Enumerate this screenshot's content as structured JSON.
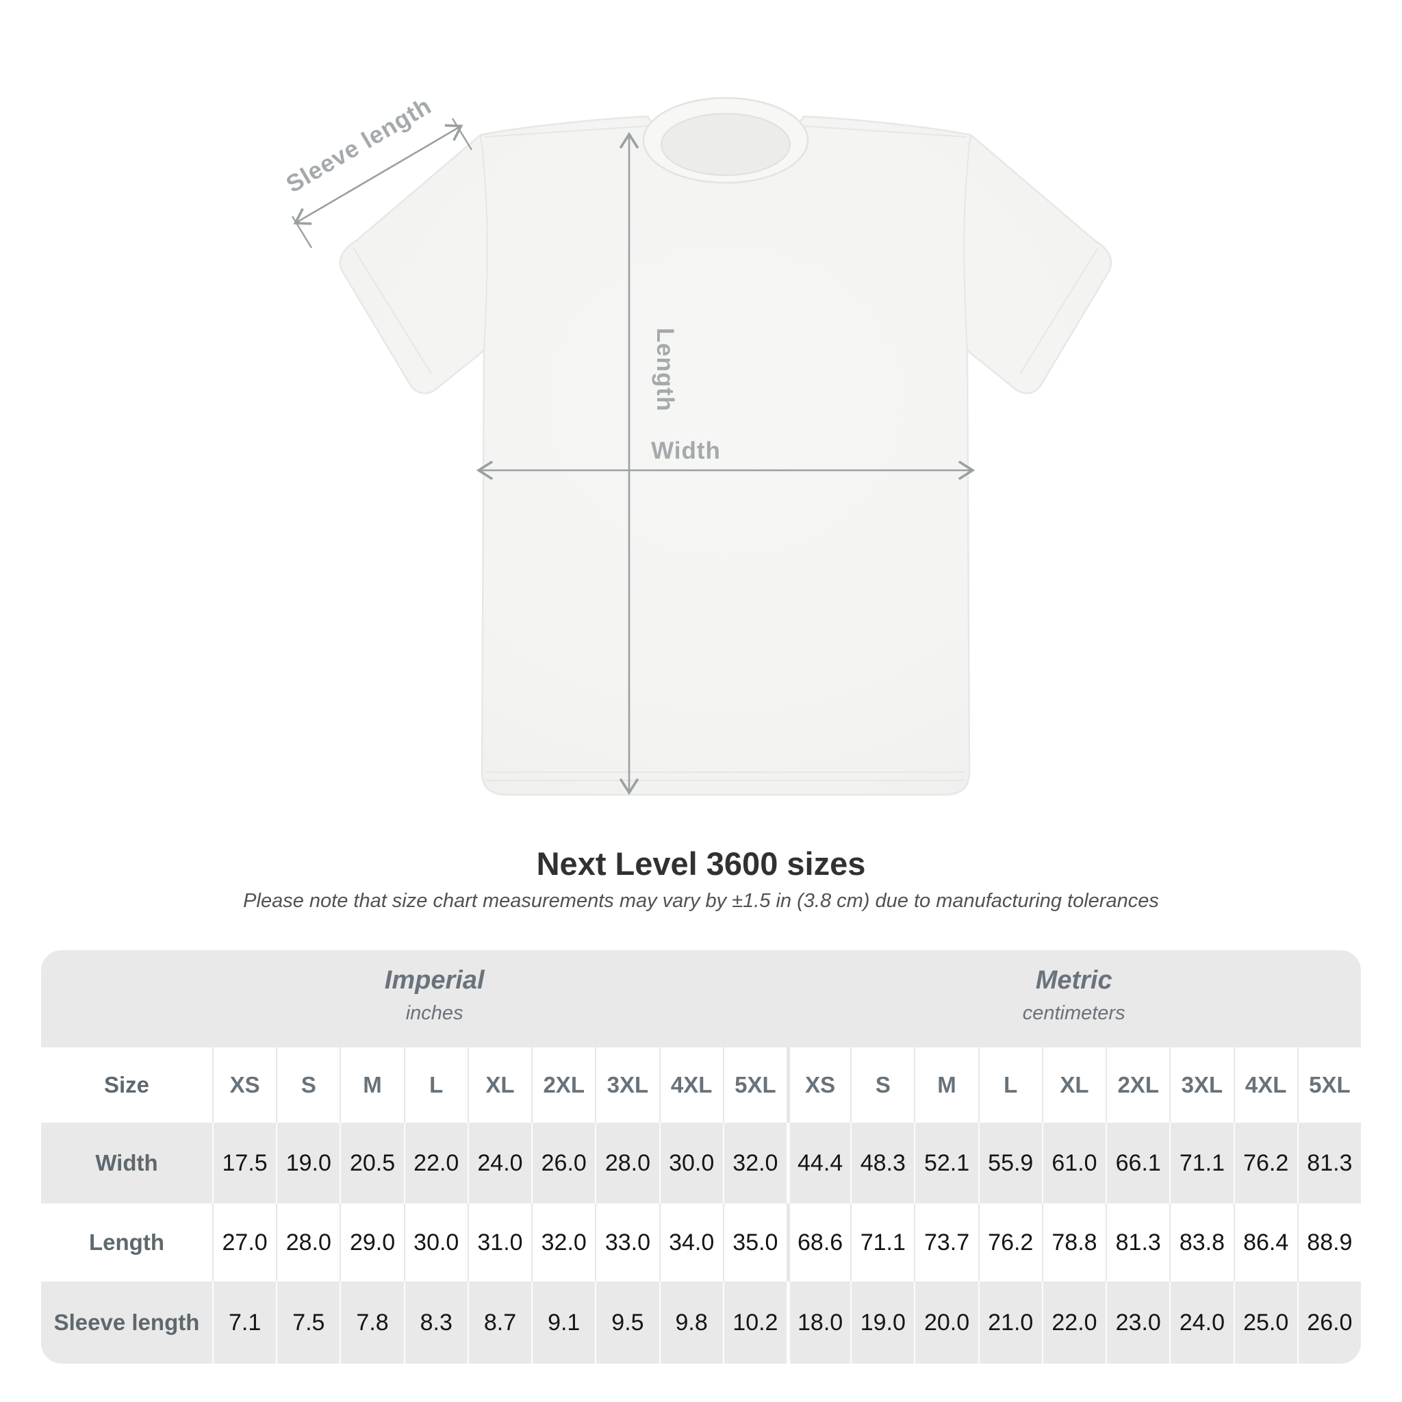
{
  "diagram": {
    "sleeve_label": "Sleeve length",
    "length_label": "Length",
    "width_label": "Width",
    "annotation_line_color": "#9aa0a2",
    "annotation_text_color": "#a4a9ac",
    "shirt_color": "#f4f4f2"
  },
  "title": "Next Level 3600 sizes",
  "subtitle": "Please note that size chart measurements may vary by ±1.5 in (3.8 cm) due to manufacturing tolerances",
  "table": {
    "background_gray": "#e9e9e9",
    "groups": [
      {
        "label": "Imperial",
        "sublabel": "inches"
      },
      {
        "label": "Metric",
        "sublabel": "centimeters"
      }
    ],
    "size_label": "Size",
    "sizes": [
      "XS",
      "S",
      "M",
      "L",
      "XL",
      "2XL",
      "3XL",
      "4XL",
      "5XL"
    ],
    "rows": [
      {
        "label": "Width",
        "imperial": [
          "17.5",
          "19.0",
          "20.5",
          "22.0",
          "24.0",
          "26.0",
          "28.0",
          "30.0",
          "32.0"
        ],
        "metric": [
          "44.4",
          "48.3",
          "52.1",
          "55.9",
          "61.0",
          "66.1",
          "71.1",
          "76.2",
          "81.3"
        ]
      },
      {
        "label": "Length",
        "imperial": [
          "27.0",
          "28.0",
          "29.0",
          "30.0",
          "31.0",
          "32.0",
          "33.0",
          "34.0",
          "35.0"
        ],
        "metric": [
          "68.6",
          "71.1",
          "73.7",
          "76.2",
          "78.8",
          "81.3",
          "83.8",
          "86.4",
          "88.9"
        ]
      },
      {
        "label": "Sleeve length",
        "imperial": [
          "7.1",
          "7.5",
          "7.8",
          "8.3",
          "8.7",
          "9.1",
          "9.5",
          "9.8",
          "10.2"
        ],
        "metric": [
          "18.0",
          "19.0",
          "20.0",
          "21.0",
          "22.0",
          "23.0",
          "24.0",
          "25.0",
          "26.0"
        ]
      }
    ]
  },
  "chart_data": {
    "type": "table",
    "title": "Next Level 3600 sizes",
    "note": "Measurements may vary by ±1.5 in (3.8 cm) due to manufacturing tolerances",
    "unit_groups": [
      "Imperial (inches)",
      "Metric (centimeters)"
    ],
    "columns": [
      "XS",
      "S",
      "M",
      "L",
      "XL",
      "2XL",
      "3XL",
      "4XL",
      "5XL"
    ],
    "rows": [
      {
        "label": "Width",
        "imperial_in": [
          17.5,
          19.0,
          20.5,
          22.0,
          24.0,
          26.0,
          28.0,
          30.0,
          32.0
        ],
        "metric_cm": [
          44.4,
          48.3,
          52.1,
          55.9,
          61.0,
          66.1,
          71.1,
          76.2,
          81.3
        ]
      },
      {
        "label": "Length",
        "imperial_in": [
          27.0,
          28.0,
          29.0,
          30.0,
          31.0,
          32.0,
          33.0,
          34.0,
          35.0
        ],
        "metric_cm": [
          68.6,
          71.1,
          73.7,
          76.2,
          78.8,
          81.3,
          83.8,
          86.4,
          88.9
        ]
      },
      {
        "label": "Sleeve length",
        "imperial_in": [
          7.1,
          7.5,
          7.8,
          8.3,
          8.7,
          9.1,
          9.5,
          9.8,
          10.2
        ],
        "metric_cm": [
          18.0,
          19.0,
          20.0,
          21.0,
          22.0,
          23.0,
          24.0,
          25.0,
          26.0
        ]
      }
    ]
  }
}
